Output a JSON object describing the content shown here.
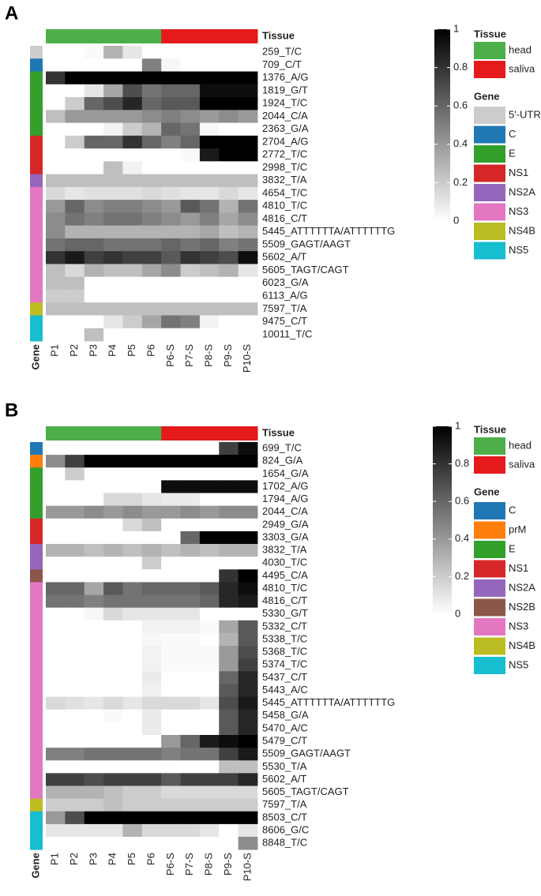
{
  "chart_data": [
    {
      "type": "heatmap",
      "panel_label": "A",
      "x": [
        "P1",
        "P2",
        "P3",
        "P4",
        "P5",
        "P6",
        "P6-S",
        "P7-S",
        "P8-S",
        "P9-S",
        "P10-S"
      ],
      "y": [
        "259_T/C",
        "709_C/T",
        "1376_A/G",
        "1819_G/T",
        "1924_T/C",
        "2044_C/A",
        "2363_G/A",
        "2704_A/G",
        "2772_T/C",
        "2998_T/C",
        "3832_T/A",
        "4654_T/C",
        "4810_T/C",
        "4816_C/T",
        "5445_ATTTTTTA/ATTTTTTG",
        "5509_GAGT/AAGT",
        "5602_A/T",
        "5605_TAGT/CAGT",
        "6023_G/A",
        "6113_A/G",
        "7597_T/A",
        "9475_C/T",
        "10011_T/C"
      ],
      "values": [
        [
          0,
          0,
          0.02,
          0.3,
          0.1,
          0,
          0,
          0,
          0,
          0,
          0
        ],
        [
          0,
          0,
          0,
          0,
          0,
          0.5,
          0.03,
          0,
          0,
          0,
          0
        ],
        [
          0.8,
          1,
          1,
          1,
          1,
          1,
          1,
          1,
          1,
          1,
          1
        ],
        [
          0,
          0,
          0.1,
          0.35,
          0.7,
          0.55,
          0.6,
          0.6,
          0.95,
          0.95,
          0.95
        ],
        [
          0,
          0.2,
          0.6,
          0.7,
          0.85,
          0.6,
          0.65,
          0.65,
          1,
          1,
          1
        ],
        [
          0.25,
          0.4,
          0.4,
          0.4,
          0.4,
          0.45,
          0.5,
          0.45,
          0.4,
          0.45,
          0.4
        ],
        [
          0,
          0,
          0,
          0.05,
          0.2,
          0.3,
          0.6,
          0.55,
          0.03,
          0,
          0
        ],
        [
          0,
          0.2,
          0.6,
          0.6,
          0.8,
          0.6,
          0.5,
          0.6,
          1,
          1,
          1
        ],
        [
          0,
          0,
          0,
          0,
          0,
          0,
          0,
          0.02,
          0.9,
          1,
          1
        ],
        [
          0,
          0,
          0,
          0.25,
          0.05,
          0,
          0,
          0,
          0,
          0,
          0
        ],
        [
          0.25,
          0.25,
          0.25,
          0.25,
          0.25,
          0.25,
          0.25,
          0.25,
          0.25,
          0.25,
          0.25
        ],
        [
          0.15,
          0.1,
          0.12,
          0.12,
          0.12,
          0.15,
          0.12,
          0.1,
          0.1,
          0.15,
          0.1
        ],
        [
          0.4,
          0.6,
          0.45,
          0.5,
          0.5,
          0.45,
          0.4,
          0.65,
          0.55,
          0.3,
          0.55
        ],
        [
          0.45,
          0.55,
          0.5,
          0.55,
          0.55,
          0.5,
          0.45,
          0.4,
          0.5,
          0.35,
          0.45
        ],
        [
          0.45,
          0.3,
          0.3,
          0.3,
          0.3,
          0.3,
          0.3,
          0.3,
          0.35,
          0.25,
          0.3
        ],
        [
          0.55,
          0.6,
          0.6,
          0.55,
          0.55,
          0.55,
          0.6,
          0.55,
          0.6,
          0.5,
          0.55
        ],
        [
          0.8,
          0.9,
          0.75,
          0.8,
          0.75,
          0.75,
          0.65,
          0.8,
          0.75,
          0.7,
          0.95
        ],
        [
          0.25,
          0.15,
          0.3,
          0.25,
          0.25,
          0.35,
          0.45,
          0.2,
          0.25,
          0.3,
          0.1
        ],
        [
          0.25,
          0.25,
          0,
          0,
          0,
          0,
          0,
          0,
          0,
          0,
          0
        ],
        [
          0.2,
          0.2,
          0,
          0,
          0,
          0,
          0,
          0,
          0,
          0,
          0
        ],
        [
          0.25,
          0.25,
          0.25,
          0.25,
          0.25,
          0.25,
          0.25,
          0.25,
          0.25,
          0.25,
          0.25
        ],
        [
          0,
          0,
          0,
          0.1,
          0.2,
          0.35,
          0.55,
          0.5,
          0.05,
          0,
          0
        ],
        [
          0,
          0,
          0.25,
          0,
          0,
          0,
          0,
          0,
          0,
          0,
          0
        ]
      ],
      "colors": [
        "#ffffff",
        "#000000"
      ],
      "zlim": [
        0,
        1
      ],
      "zticks": [
        0,
        0.2,
        0.4,
        0.6,
        0.8,
        1
      ],
      "tissue": {
        "title": "Tissue",
        "groups": [
          {
            "name": "head",
            "color": "#4daf4a"
          },
          {
            "name": "saliva",
            "color": "#e41a1c"
          }
        ],
        "columns": [
          "head",
          "head",
          "head",
          "head",
          "head",
          "head",
          "saliva",
          "saliva",
          "saliva",
          "saliva",
          "saliva"
        ]
      },
      "gene": {
        "title": "Gene",
        "groups": [
          {
            "name": "5'-UTR",
            "color": "#cccccc"
          },
          {
            "name": "C",
            "color": "#1f78b4"
          },
          {
            "name": "E",
            "color": "#33a02c"
          },
          {
            "name": "NS1",
            "color": "#d62728"
          },
          {
            "name": "NS2A",
            "color": "#9467bd"
          },
          {
            "name": "NS3",
            "color": "#e377c2"
          },
          {
            "name": "NS4B",
            "color": "#bcbd22"
          },
          {
            "name": "NS5",
            "color": "#17becf"
          }
        ],
        "rows": [
          "5'-UTR",
          "C",
          "E",
          "E",
          "E",
          "E",
          "E",
          "NS1",
          "NS1",
          "NS1",
          "NS2A",
          "NS3",
          "NS3",
          "NS3",
          "NS3",
          "NS3",
          "NS3",
          "NS3",
          "NS3",
          "NS3",
          "NS4B",
          "NS5",
          "NS5"
        ]
      }
    },
    {
      "type": "heatmap",
      "panel_label": "B",
      "x": [
        "P1",
        "P2",
        "P3",
        "P4",
        "P5",
        "P6",
        "P6-S",
        "P7-S",
        "P8-S",
        "P9-S",
        "P10-S"
      ],
      "y": [
        "699_T/C",
        "824_G/A",
        "1654_G/A",
        "1702_A/G",
        "1794_A/G",
        "2044_C/A",
        "2949_G/A",
        "3303_G/A",
        "3832_T/A",
        "4030_T/C",
        "4495_C/A",
        "4810_T/C",
        "4816_C/T",
        "5330_G/T",
        "5332_C/T",
        "5338_T/C",
        "5368_T/C",
        "5374_T/C",
        "5437_C/T",
        "5443_A/C",
        "5445_ATTTTTTA/ATTTTTTG",
        "5458_G/A",
        "5470_A/C",
        "5479_C/T",
        "5509_GAGT/AAGT",
        "5530_T/A",
        "5602_A/T",
        "5605_TAGT/CAGT",
        "7597_T/A",
        "8503_C/T",
        "8606_G/C",
        "8848_T/C"
      ],
      "values": [
        [
          0,
          0,
          0,
          0,
          0,
          0,
          0,
          0,
          0,
          0.75,
          0.95
        ],
        [
          0.45,
          0.75,
          1,
          1,
          1,
          1,
          1,
          1,
          1,
          1,
          1
        ],
        [
          0,
          0.2,
          0,
          0,
          0,
          0,
          0,
          0,
          0,
          0,
          0
        ],
        [
          0,
          0,
          0,
          0,
          0,
          0,
          0.95,
          0.95,
          0.95,
          0.95,
          0.95
        ],
        [
          0,
          0,
          0,
          0.15,
          0.15,
          0.1,
          0.08,
          0.08,
          0,
          0,
          0
        ],
        [
          0.4,
          0.4,
          0.45,
          0.4,
          0.45,
          0.4,
          0.4,
          0.45,
          0.4,
          0.45,
          0.45
        ],
        [
          0,
          0,
          0,
          0,
          0.15,
          0.25,
          0,
          0,
          0,
          0,
          0
        ],
        [
          0,
          0,
          0,
          0,
          0,
          0,
          0,
          0.6,
          1,
          1,
          1
        ],
        [
          0.3,
          0.3,
          0.25,
          0.3,
          0.25,
          0.3,
          0.25,
          0.3,
          0.25,
          0.3,
          0.3
        ],
        [
          0,
          0,
          0,
          0,
          0,
          0.2,
          0,
          0,
          0,
          0,
          0
        ],
        [
          0,
          0,
          0,
          0,
          0,
          0,
          0,
          0,
          0,
          0.8,
          1
        ],
        [
          0.6,
          0.6,
          0.35,
          0.65,
          0.55,
          0.6,
          0.6,
          0.6,
          0.65,
          0.85,
          0.95
        ],
        [
          0.55,
          0.55,
          0.5,
          0.55,
          0.55,
          0.55,
          0.55,
          0.55,
          0.6,
          0.85,
          0.9
        ],
        [
          0,
          0,
          0.03,
          0.15,
          0.1,
          0.1,
          0.1,
          0.1,
          0,
          0,
          0
        ],
        [
          0,
          0,
          0,
          0,
          0,
          0.05,
          0.05,
          0.05,
          0.02,
          0.35,
          0.65
        ],
        [
          0,
          0,
          0,
          0,
          0,
          0.03,
          0.02,
          0.02,
          0,
          0.3,
          0.65
        ],
        [
          0,
          0,
          0,
          0,
          0,
          0.05,
          0.02,
          0.02,
          0.02,
          0.4,
          0.7
        ],
        [
          0,
          0,
          0,
          0,
          0,
          0.05,
          0.02,
          0.02,
          0.02,
          0.4,
          0.75
        ],
        [
          0,
          0,
          0,
          0,
          0,
          0.08,
          0,
          0,
          0,
          0.6,
          0.85
        ],
        [
          0,
          0,
          0,
          0,
          0,
          0.06,
          0,
          0,
          0,
          0.65,
          0.85
        ],
        [
          0.15,
          0.12,
          0.1,
          0.15,
          0.1,
          0.15,
          0.15,
          0.15,
          0.1,
          0.7,
          0.9
        ],
        [
          0,
          0,
          0,
          0.02,
          0,
          0.08,
          0,
          0,
          0,
          0.65,
          0.85
        ],
        [
          0,
          0,
          0,
          0,
          0,
          0.08,
          0,
          0,
          0,
          0.65,
          0.85
        ],
        [
          0,
          0,
          0,
          0,
          0,
          0,
          0.4,
          0.6,
          0.9,
          0.95,
          1
        ],
        [
          0.5,
          0.5,
          0.55,
          0.55,
          0.55,
          0.55,
          0.5,
          0.55,
          0.55,
          0.75,
          0.9
        ],
        [
          0,
          0,
          0,
          0,
          0,
          0,
          0,
          0,
          0,
          0.25,
          0.25
        ],
        [
          0.75,
          0.75,
          0.7,
          0.75,
          0.75,
          0.75,
          0.65,
          0.75,
          0.75,
          0.75,
          0.85
        ],
        [
          0.3,
          0.3,
          0.3,
          0.25,
          0.2,
          0.2,
          0.15,
          0.15,
          0.15,
          0.15,
          0.15
        ],
        [
          0.2,
          0.2,
          0.2,
          0.25,
          0.2,
          0.2,
          0.2,
          0.2,
          0.2,
          0.2,
          0.2
        ],
        [
          0.4,
          0.7,
          1,
          1,
          1,
          1,
          1,
          1,
          1,
          1,
          1
        ],
        [
          0.1,
          0.1,
          0.1,
          0.1,
          0.3,
          0.15,
          0.15,
          0.15,
          0.1,
          0,
          0.1
        ],
        [
          0,
          0,
          0,
          0,
          0,
          0,
          0,
          0,
          0,
          0,
          0.45
        ]
      ],
      "colors": [
        "#ffffff",
        "#000000"
      ],
      "zlim": [
        0,
        1
      ],
      "zticks": [
        0,
        0.2,
        0.4,
        0.6,
        0.8,
        1
      ],
      "tissue": {
        "title": "Tissue",
        "groups": [
          {
            "name": "head",
            "color": "#4daf4a"
          },
          {
            "name": "saliva",
            "color": "#e41a1c"
          }
        ],
        "columns": [
          "head",
          "head",
          "head",
          "head",
          "head",
          "head",
          "saliva",
          "saliva",
          "saliva",
          "saliva",
          "saliva"
        ]
      },
      "gene": {
        "title": "Gene",
        "groups": [
          {
            "name": "C",
            "color": "#1f78b4"
          },
          {
            "name": "prM",
            "color": "#ff7f0e"
          },
          {
            "name": "E",
            "color": "#33a02c"
          },
          {
            "name": "NS1",
            "color": "#d62728"
          },
          {
            "name": "NS2A",
            "color": "#9467bd"
          },
          {
            "name": "NS2B",
            "color": "#8c564b"
          },
          {
            "name": "NS3",
            "color": "#e377c2"
          },
          {
            "name": "NS4B",
            "color": "#bcbd22"
          },
          {
            "name": "NS5",
            "color": "#17becf"
          }
        ],
        "rows": [
          "C",
          "prM",
          "E",
          "E",
          "E",
          "E",
          "NS1",
          "NS1",
          "NS2A",
          "NS2A",
          "NS2B",
          "NS3",
          "NS3",
          "NS3",
          "NS3",
          "NS3",
          "NS3",
          "NS3",
          "NS3",
          "NS3",
          "NS3",
          "NS3",
          "NS3",
          "NS3",
          "NS3",
          "NS3",
          "NS3",
          "NS3",
          "NS4B",
          "NS5",
          "NS5",
          "NS5"
        ]
      }
    }
  ]
}
